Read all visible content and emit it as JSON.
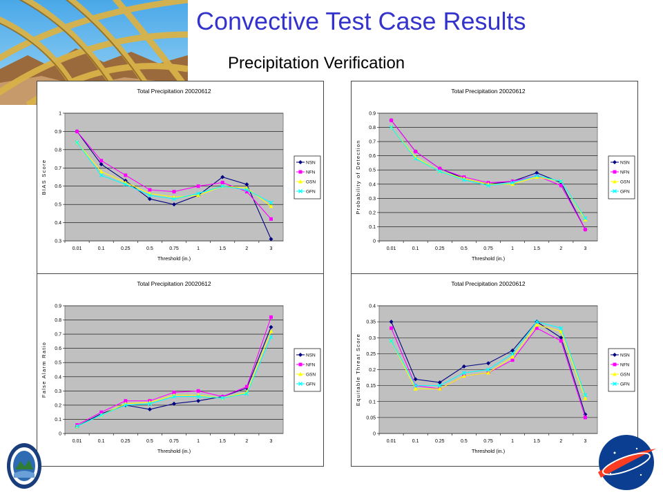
{
  "page": {
    "title": "Convective Test Case Results",
    "subtitle": "Precipitation Verification"
  },
  "colors": {
    "title": "#3333cc",
    "plot_bg": "#c0c0c0",
    "NSN": "#000080",
    "NFN": "#ff00ff",
    "GSN": "#ffff00",
    "GFN": "#00ffff"
  },
  "chart_data": [
    {
      "type": "line",
      "title": "Total Precipitation 20020612",
      "xlabel": "Threshold (in.)",
      "ylabel": "BIAS Score",
      "categories": [
        "0.01",
        "0.1",
        "0.25",
        "0.5",
        "0.75",
        "1",
        "1.5",
        "2",
        "3"
      ],
      "ylim": [
        0.3,
        1
      ],
      "yticks": [
        "0.3",
        "0.4",
        "0.5",
        "0.6",
        "0.7",
        "0.8",
        "0.9",
        "1"
      ],
      "grid": true,
      "legend": "right",
      "series": [
        {
          "name": "NSN",
          "values": [
            0.9,
            0.72,
            0.63,
            0.53,
            0.5,
            0.55,
            0.65,
            0.61,
            0.31
          ]
        },
        {
          "name": "NFN",
          "values": [
            0.9,
            0.74,
            0.66,
            0.58,
            0.57,
            0.6,
            0.62,
            0.57,
            0.42
          ]
        },
        {
          "name": "GSN",
          "values": [
            0.84,
            0.68,
            0.62,
            0.56,
            0.54,
            0.55,
            0.6,
            0.59,
            0.49
          ]
        },
        {
          "name": "GFN",
          "values": [
            0.84,
            0.66,
            0.61,
            0.55,
            0.53,
            0.56,
            0.6,
            0.58,
            0.51
          ]
        }
      ]
    },
    {
      "type": "line",
      "title": "Total Precipitation 20020612",
      "xlabel": "Threshold (in.)",
      "ylabel": "Probability of Detection",
      "categories": [
        "0.01",
        "0.1",
        "0.25",
        "0.5",
        "0.75",
        "1",
        "1.5",
        "2",
        "3"
      ],
      "ylim": [
        0,
        0.9
      ],
      "yticks": [
        "0",
        "0.1",
        "0.2",
        "0.3",
        "0.4",
        "0.5",
        "0.6",
        "0.7",
        "0.8",
        "0.9"
      ],
      "grid": true,
      "legend": "right",
      "series": [
        {
          "name": "NSN",
          "values": [
            0.85,
            0.63,
            0.51,
            0.44,
            0.4,
            0.42,
            0.48,
            0.41,
            0.08
          ]
        },
        {
          "name": "NFN",
          "values": [
            0.85,
            0.63,
            0.51,
            0.45,
            0.41,
            0.42,
            0.46,
            0.39,
            0.08
          ]
        },
        {
          "name": "GSN",
          "values": [
            0.8,
            0.59,
            0.49,
            0.44,
            0.4,
            0.4,
            0.45,
            0.42,
            0.15
          ]
        },
        {
          "name": "GFN",
          "values": [
            0.8,
            0.58,
            0.49,
            0.43,
            0.39,
            0.41,
            0.46,
            0.42,
            0.16
          ]
        }
      ]
    },
    {
      "type": "line",
      "title": "Total Precipitation 20020612",
      "xlabel": "Threshold (in.)",
      "ylabel": "False Alarm Ratio",
      "categories": [
        "0.01",
        "0.1",
        "0.25",
        "0.5",
        "0.75",
        "1",
        "1.5",
        "2",
        "3"
      ],
      "ylim": [
        0,
        0.9
      ],
      "yticks": [
        "0",
        "0.1",
        "0.2",
        "0.3",
        "0.4",
        "0.5",
        "0.6",
        "0.7",
        "0.8",
        "0.9"
      ],
      "grid": true,
      "legend": "right",
      "series": [
        {
          "name": "NSN",
          "values": [
            0.05,
            0.14,
            0.2,
            0.17,
            0.21,
            0.23,
            0.26,
            0.32,
            0.75
          ]
        },
        {
          "name": "NFN",
          "values": [
            0.06,
            0.15,
            0.23,
            0.23,
            0.29,
            0.3,
            0.26,
            0.33,
            0.82
          ]
        },
        {
          "name": "GSN",
          "values": [
            0.05,
            0.13,
            0.21,
            0.22,
            0.27,
            0.27,
            0.25,
            0.29,
            0.72
          ]
        },
        {
          "name": "GFN",
          "values": [
            0.05,
            0.13,
            0.2,
            0.21,
            0.26,
            0.26,
            0.25,
            0.28,
            0.68
          ]
        }
      ]
    },
    {
      "type": "line",
      "title": "Total Precipitation 20020612",
      "xlabel": "Threshold (in.)",
      "ylabel": "Equitable Threat Score",
      "categories": [
        "0.01",
        "0.1",
        "0.25",
        "0.5",
        "0.75",
        "1",
        "1.5",
        "2",
        "3"
      ],
      "ylim": [
        0,
        0.4
      ],
      "yticks": [
        "0",
        "0.05",
        "0.1",
        "0.15",
        "0.2",
        "0.25",
        "0.3",
        "0.35",
        "0.4"
      ],
      "grid": true,
      "legend": "right",
      "series": [
        {
          "name": "NSN",
          "values": [
            0.35,
            0.17,
            0.16,
            0.21,
            0.22,
            0.26,
            0.35,
            0.3,
            0.06
          ]
        },
        {
          "name": "NFN",
          "values": [
            0.33,
            0.15,
            0.14,
            0.18,
            0.19,
            0.23,
            0.33,
            0.29,
            0.05
          ]
        },
        {
          "name": "GSN",
          "values": [
            0.29,
            0.14,
            0.14,
            0.18,
            0.19,
            0.24,
            0.34,
            0.32,
            0.11
          ]
        },
        {
          "name": "GFN",
          "values": [
            0.29,
            0.15,
            0.15,
            0.19,
            0.2,
            0.25,
            0.35,
            0.33,
            0.12
          ]
        }
      ]
    }
  ]
}
